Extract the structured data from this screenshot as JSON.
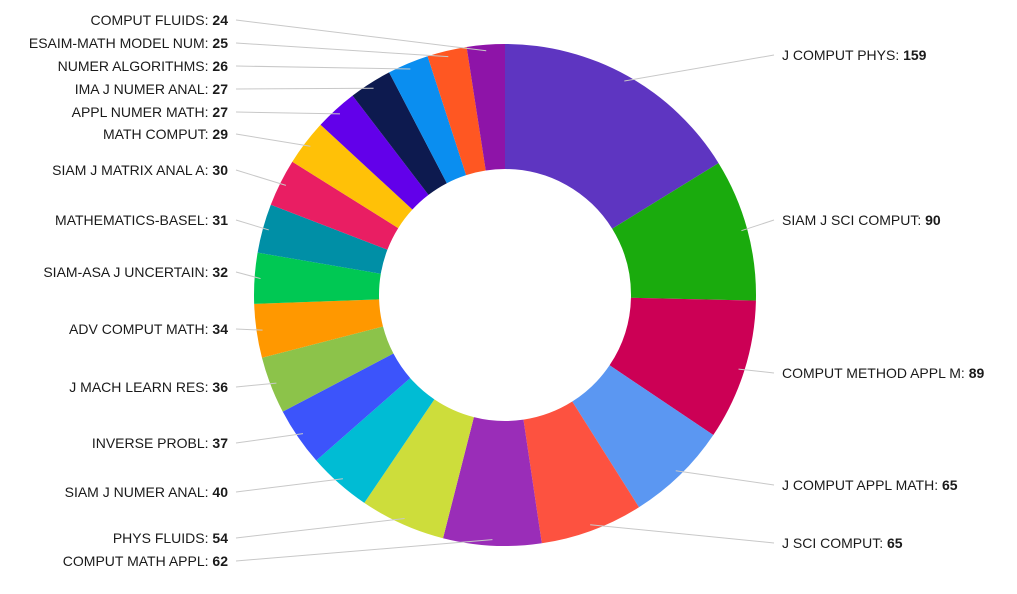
{
  "chart_data": {
    "type": "pie",
    "donut": true,
    "legend": "none",
    "labels_placement": "outside with leader lines",
    "slices": [
      {
        "label": "J COMPUT PHYS",
        "value": 159,
        "color": "#5e35c1"
      },
      {
        "label": "SIAM J SCI COMPUT",
        "value": 90,
        "color": "#1aab0d"
      },
      {
        "label": "COMPUT METHOD APPL M",
        "value": 89,
        "color": "#cc0055"
      },
      {
        "label": "J COMPUT APPL MATH",
        "value": 65,
        "color": "#5b97f2"
      },
      {
        "label": "J SCI COMPUT",
        "value": 65,
        "color": "#fd5240"
      },
      {
        "label": "COMPUT MATH APPL",
        "value": 62,
        "color": "#9a2db8"
      },
      {
        "label": "PHYS FLUIDS",
        "value": 54,
        "color": "#cddd3b"
      },
      {
        "label": "SIAM J NUMER ANAL",
        "value": 40,
        "color": "#00bcd4"
      },
      {
        "label": "INVERSE PROBL",
        "value": 37,
        "color": "#3c54fb"
      },
      {
        "label": "J MACH LEARN RES",
        "value": 36,
        "color": "#8cc34a"
      },
      {
        "label": "ADV COMPUT MATH",
        "value": 34,
        "color": "#ff9800"
      },
      {
        "label": "SIAM-ASA J UNCERTAIN",
        "value": 32,
        "color": "#00c853"
      },
      {
        "label": "MATHEMATICS-BASEL",
        "value": 31,
        "color": "#008fa6"
      },
      {
        "label": "SIAM J MATRIX ANAL A",
        "value": 30,
        "color": "#e91e63"
      },
      {
        "label": "MATH COMPUT",
        "value": 29,
        "color": "#ffc107"
      },
      {
        "label": "APPL NUMER MATH",
        "value": 27,
        "color": "#6200ea"
      },
      {
        "label": "IMA J NUMER ANAL",
        "value": 27,
        "color": "#0d1a4f"
      },
      {
        "label": "NUMER ALGORITHMS",
        "value": 26,
        "color": "#0a8ef0"
      },
      {
        "label": "ESAIM-MATH MODEL NUM",
        "value": 25,
        "color": "#ff5722"
      },
      {
        "label": "COMPUT FLUIDS",
        "value": 24,
        "color": "#8e14a8"
      }
    ]
  }
}
